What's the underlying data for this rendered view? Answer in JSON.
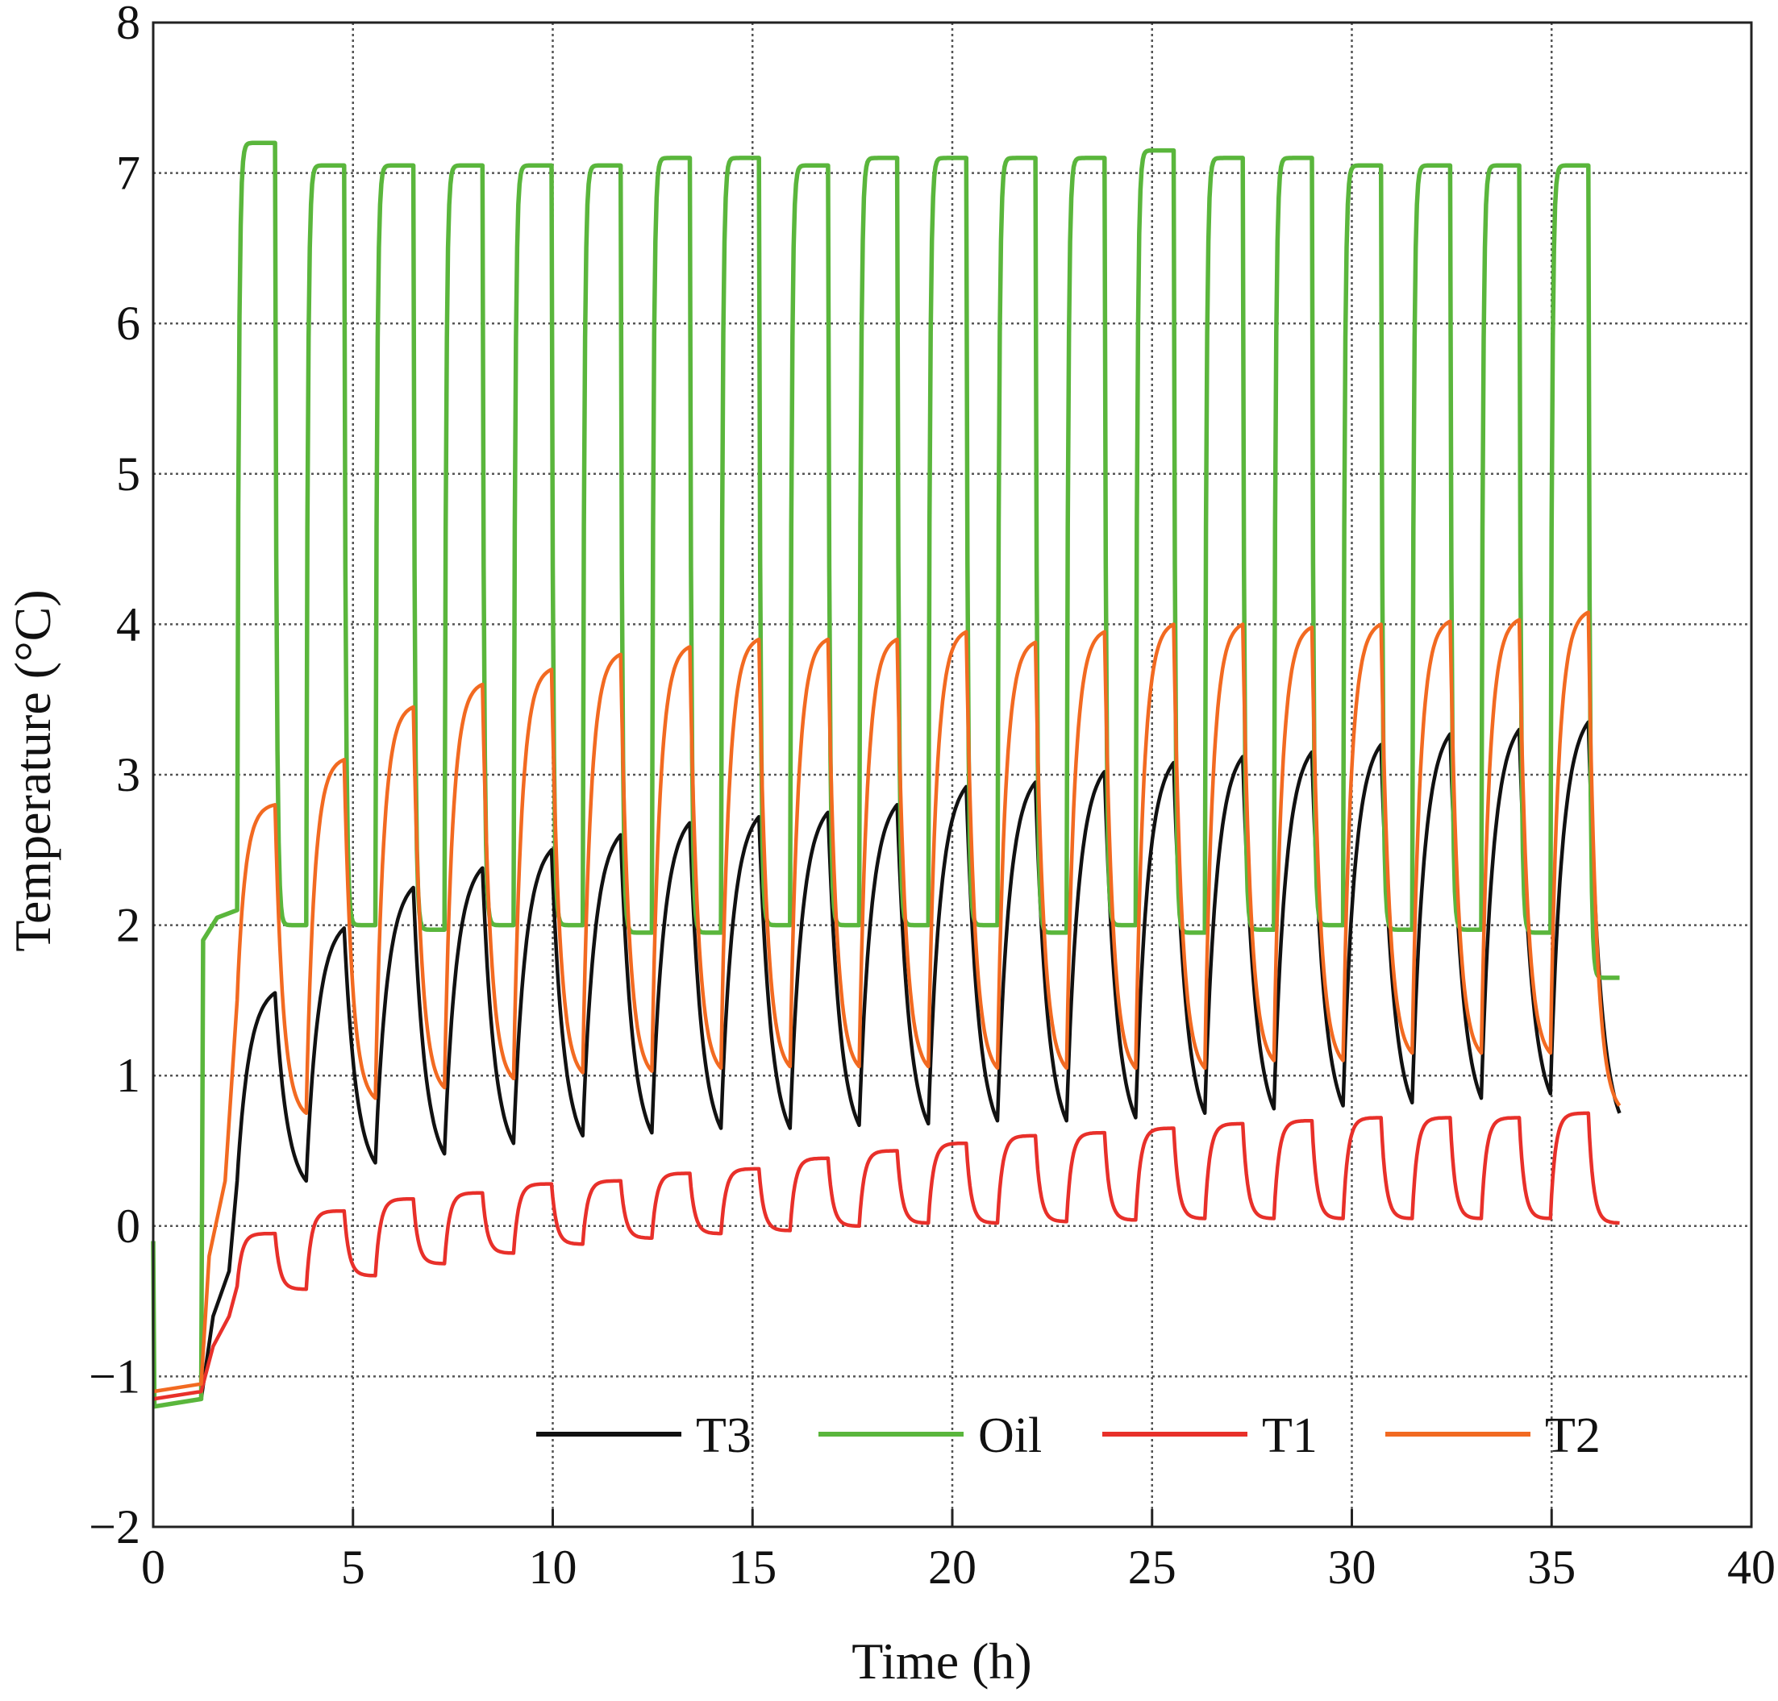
{
  "chart_data": {
    "type": "line",
    "title": "",
    "xlabel": "Time (h)",
    "ylabel": "Temperature (°C)",
    "xlim": [
      0,
      40
    ],
    "ylim": [
      -2,
      8
    ],
    "xticks": [
      0,
      5,
      10,
      15,
      20,
      25,
      30,
      35,
      40
    ],
    "yticks": [
      -2,
      -1,
      0,
      1,
      2,
      3,
      4,
      5,
      6,
      7,
      8
    ],
    "xtick_labels": [
      "0",
      "5",
      "10",
      "15",
      "20",
      "25",
      "30",
      "35",
      "40"
    ],
    "ytick_labels": [
      "−2",
      "−1",
      "0",
      "1",
      "2",
      "3",
      "4",
      "5",
      "6",
      "7",
      "8"
    ],
    "grid": true,
    "legend_position": "bottom",
    "cycles": {
      "first_on_h": 2.1,
      "period_h": 1.73,
      "on_duration_h": 0.95,
      "count": 20,
      "end_h": 36.7
    },
    "series": [
      {
        "name": "T3",
        "color": "#111111",
        "initial": [
          [
            0,
            -1.2
          ],
          [
            1.2,
            -1.15
          ],
          [
            1.5,
            -0.6
          ],
          [
            1.9,
            -0.3
          ],
          [
            2.1,
            0.3
          ]
        ],
        "tau_h": 0.3,
        "cycle_max": [
          1.55,
          1.98,
          2.25,
          2.38,
          2.5,
          2.6,
          2.68,
          2.72,
          2.75,
          2.8,
          2.92,
          2.95,
          3.02,
          3.08,
          3.12,
          3.15,
          3.2,
          3.27,
          3.3,
          3.35
        ],
        "cycle_min": [
          0.3,
          0.42,
          0.48,
          0.55,
          0.6,
          0.62,
          0.65,
          0.65,
          0.67,
          0.68,
          0.7,
          0.7,
          0.72,
          0.75,
          0.78,
          0.8,
          0.82,
          0.85,
          0.88,
          0.75
        ]
      },
      {
        "name": "Oil",
        "color": "#5ab63c",
        "initial": [
          [
            0,
            -0.1
          ],
          [
            0.03,
            -1.2
          ],
          [
            1.2,
            -1.15
          ],
          [
            1.25,
            1.9
          ],
          [
            1.6,
            2.05
          ],
          [
            2.1,
            2.1
          ]
        ],
        "tau_h": 0.04,
        "cycle_max": [
          7.2,
          7.05,
          7.05,
          7.05,
          7.05,
          7.05,
          7.1,
          7.1,
          7.05,
          7.1,
          7.1,
          7.1,
          7.1,
          7.15,
          7.1,
          7.1,
          7.05,
          7.05,
          7.05,
          7.05
        ],
        "cycle_min": [
          2.0,
          2.0,
          1.97,
          2.0,
          2.0,
          1.95,
          1.95,
          2.0,
          2.0,
          2.0,
          2.0,
          1.95,
          2.0,
          1.95,
          1.97,
          2.0,
          1.97,
          1.97,
          1.95,
          1.65
        ]
      },
      {
        "name": "T1",
        "color": "#e8302a",
        "initial": [
          [
            0,
            -1.15
          ],
          [
            1.2,
            -1.1
          ],
          [
            1.5,
            -0.8
          ],
          [
            1.9,
            -0.6
          ],
          [
            2.1,
            -0.4
          ]
        ],
        "tau_h": 0.12,
        "cycle_max": [
          -0.05,
          0.1,
          0.18,
          0.22,
          0.28,
          0.3,
          0.35,
          0.38,
          0.45,
          0.5,
          0.55,
          0.6,
          0.62,
          0.65,
          0.68,
          0.7,
          0.72,
          0.72,
          0.72,
          0.75
        ],
        "cycle_min": [
          -0.42,
          -0.33,
          -0.25,
          -0.18,
          -0.12,
          -0.08,
          -0.05,
          -0.03,
          0.0,
          0.02,
          0.02,
          0.03,
          0.04,
          0.05,
          0.05,
          0.05,
          0.05,
          0.05,
          0.05,
          0.02
        ]
      },
      {
        "name": "T2",
        "color": "#f26a21",
        "initial": [
          [
            0,
            -1.1
          ],
          [
            1.2,
            -1.05
          ],
          [
            1.4,
            -0.2
          ],
          [
            1.8,
            0.3
          ],
          [
            2.1,
            1.5
          ]
        ],
        "tau_h": 0.2,
        "cycle_max": [
          2.8,
          3.1,
          3.45,
          3.6,
          3.7,
          3.8,
          3.85,
          3.9,
          3.9,
          3.9,
          3.95,
          3.88,
          3.95,
          4.0,
          4.0,
          3.98,
          4.0,
          4.02,
          4.03,
          4.08
        ],
        "cycle_min": [
          0.75,
          0.85,
          0.92,
          0.98,
          1.02,
          1.03,
          1.05,
          1.06,
          1.06,
          1.06,
          1.05,
          1.05,
          1.05,
          1.05,
          1.1,
          1.1,
          1.15,
          1.15,
          1.15,
          0.8
        ]
      }
    ]
  }
}
